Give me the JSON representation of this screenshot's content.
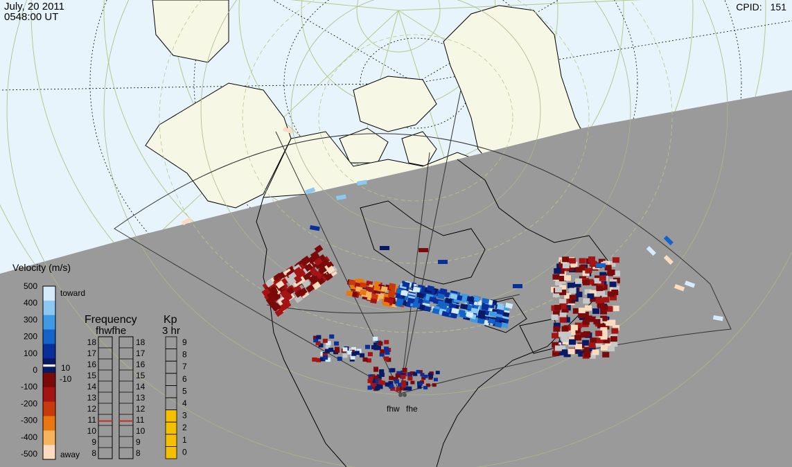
{
  "header": {
    "date": "July, 20 2011",
    "time": "0548:00 UT",
    "cpid_label": "CPID:",
    "cpid_value": "151"
  },
  "velocity_scale": {
    "title": "Velocity (m/s)",
    "ticks": [
      "500",
      "400",
      "300",
      "200",
      "100",
      "0",
      "-100",
      "-200",
      "-300",
      "-400",
      "-500"
    ],
    "toward_label": "toward",
    "away_label": "away",
    "pos_threshold": "10",
    "neg_threshold": "-10",
    "colors": [
      "#d6ecfb",
      "#8cc8f2",
      "#3e9be3",
      "#1464c8",
      "#0a2f9a",
      "#081a66",
      "#7a0a0a",
      "#a41414",
      "#c83a0c",
      "#e8780e",
      "#f7b45c",
      "#fcdcc0"
    ]
  },
  "frequency_panel": {
    "title": "Frequency",
    "subtitle": "fhwfhe",
    "left_ticks": [
      "18",
      "17",
      "16",
      "15",
      "14",
      "13",
      "12",
      "11",
      "10",
      "9",
      "8"
    ],
    "right_ticks": [
      "18",
      "17",
      "16",
      "15",
      "14",
      "13",
      "12",
      "11",
      "10",
      "9",
      "8"
    ],
    "current_fhw": 11,
    "current_fhe": 11
  },
  "kp_panel": {
    "title": "Kp",
    "subtitle": "3 hr",
    "ticks": [
      "9",
      "8",
      "7",
      "6",
      "5",
      "4",
      "3",
      "2",
      "1",
      "0"
    ],
    "value": 4
  },
  "radars": [
    {
      "name": "fhw"
    },
    {
      "name": "fhe"
    }
  ],
  "colors": {
    "ocean_day": "#e8f4fb",
    "night": "#9a9a9a",
    "land_day": "#f7f7e6",
    "grid": "#b5c88a",
    "kp_fill": "#f5c000",
    "freq_marker": "#c03020"
  }
}
